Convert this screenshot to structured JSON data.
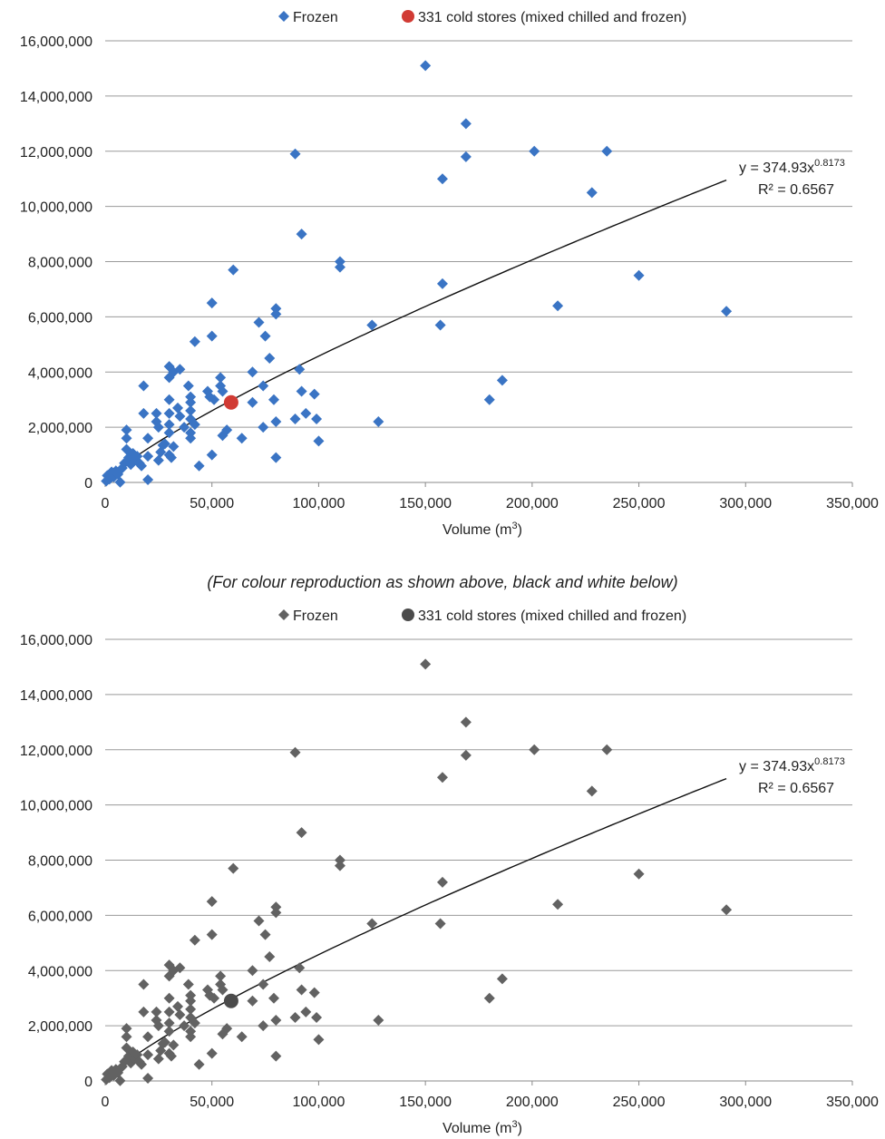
{
  "caption": "(For colour reproduction as shown above, black and white below)",
  "chart_data": [
    {
      "type": "scatter",
      "variant": "colour",
      "xlabel_main": "Volume (m",
      "xlabel_sup": "3",
      "xlabel_close": ")",
      "ylabel": "",
      "xlim": [
        0,
        350000
      ],
      "ylim": [
        0,
        16000000
      ],
      "xticks": [
        "0",
        "50,000",
        "100,000",
        "150,000",
        "200,000",
        "250,000",
        "300,000",
        "350,000"
      ],
      "yticks": [
        "0",
        "2,000,000",
        "4,000,000",
        "6,000,000",
        "8,000,000",
        "10,000,000",
        "12,000,000",
        "14,000,000",
        "16,000,000"
      ],
      "grid": "horizontal",
      "legend_position": "top",
      "trendline": {
        "type": "power",
        "a": 374.93,
        "b": 0.8173,
        "eq_main": "y = 374.93x",
        "eq_sup": "0.8173",
        "r2": "R² = 0.6567",
        "color": "#111111"
      },
      "series": [
        {
          "name": "Frozen",
          "marker": "diamond",
          "color": "#3a74c4",
          "points": []
        },
        {
          "name": "331 cold stores (mixed chilled and frozen)",
          "marker": "circle",
          "color": "#d13b34",
          "points": [
            [
              59000,
              2900000
            ]
          ]
        }
      ]
    },
    {
      "type": "scatter",
      "variant": "greyscale",
      "xlabel_main": "Volume (m",
      "xlabel_sup": "3",
      "xlabel_close": ")",
      "ylabel": "",
      "xlim": [
        0,
        350000
      ],
      "ylim": [
        0,
        16000000
      ],
      "xticks": [
        "0",
        "50,000",
        "100,000",
        "150,000",
        "200,000",
        "250,000",
        "300,000",
        "350,000"
      ],
      "yticks": [
        "0",
        "2,000,000",
        "4,000,000",
        "6,000,000",
        "8,000,000",
        "10,000,000",
        "12,000,000",
        "14,000,000",
        "16,000,000"
      ],
      "grid": "horizontal",
      "legend_position": "top",
      "trendline": {
        "type": "power",
        "a": 374.93,
        "b": 0.8173,
        "eq_main": "y = 374.93x",
        "eq_sup": "0.8173",
        "r2": "R² = 0.6567",
        "color": "#111111"
      },
      "series": [
        {
          "name": "Frozen",
          "marker": "diamond",
          "color": "#626262",
          "points": []
        },
        {
          "name": "331 cold stores (mixed chilled and frozen)",
          "marker": "circle",
          "color": "#4b4b4b",
          "points": [
            [
              59000,
              2900000
            ]
          ]
        }
      ]
    }
  ],
  "frozen_points": [
    [
      500,
      50000
    ],
    [
      1000,
      250000
    ],
    [
      2000,
      120000
    ],
    [
      3000,
      380000
    ],
    [
      4000,
      200000
    ],
    [
      5000,
      420000
    ],
    [
      6000,
      300000
    ],
    [
      7000,
      10000
    ],
    [
      8000,
      520000
    ],
    [
      9000,
      700000
    ],
    [
      10000,
      1200000
    ],
    [
      10000,
      1600000
    ],
    [
      10000,
      1900000
    ],
    [
      11000,
      900000
    ],
    [
      12000,
      650000
    ],
    [
      13000,
      1050000
    ],
    [
      14000,
      800000
    ],
    [
      15000,
      950000
    ],
    [
      16000,
      700000
    ],
    [
      17000,
      600000
    ],
    [
      18000,
      3500000
    ],
    [
      18000,
      2500000
    ],
    [
      20000,
      1600000
    ],
    [
      20000,
      950000
    ],
    [
      20000,
      100000
    ],
    [
      24000,
      2500000
    ],
    [
      24000,
      2200000
    ],
    [
      25000,
      2000000
    ],
    [
      25000,
      800000
    ],
    [
      26000,
      1100000
    ],
    [
      27000,
      1350000
    ],
    [
      28000,
      1400000
    ],
    [
      30000,
      4200000
    ],
    [
      30000,
      3800000
    ],
    [
      30000,
      3000000
    ],
    [
      30000,
      2500000
    ],
    [
      30000,
      2100000
    ],
    [
      30000,
      1800000
    ],
    [
      30000,
      1000000
    ],
    [
      31000,
      900000
    ],
    [
      32000,
      4000000
    ],
    [
      32000,
      1300000
    ],
    [
      34000,
      2700000
    ],
    [
      35000,
      4100000
    ],
    [
      35000,
      2400000
    ],
    [
      37000,
      2000000
    ],
    [
      39000,
      3500000
    ],
    [
      40000,
      3100000
    ],
    [
      40000,
      2900000
    ],
    [
      40000,
      2600000
    ],
    [
      40000,
      2300000
    ],
    [
      40000,
      1800000
    ],
    [
      40000,
      1600000
    ],
    [
      42000,
      5100000
    ],
    [
      42000,
      2100000
    ],
    [
      44000,
      600000
    ],
    [
      48000,
      3300000
    ],
    [
      49000,
      3100000
    ],
    [
      50000,
      6500000
    ],
    [
      50000,
      5300000
    ],
    [
      50000,
      1000000
    ],
    [
      51000,
      3000000
    ],
    [
      54000,
      3800000
    ],
    [
      54000,
      3500000
    ],
    [
      55000,
      3300000
    ],
    [
      55000,
      1700000
    ],
    [
      57000,
      1900000
    ],
    [
      60000,
      7700000
    ],
    [
      64000,
      1600000
    ],
    [
      69000,
      4000000
    ],
    [
      69000,
      2900000
    ],
    [
      72000,
      5800000
    ],
    [
      74000,
      3500000
    ],
    [
      74000,
      2000000
    ],
    [
      75000,
      5300000
    ],
    [
      77000,
      4500000
    ],
    [
      79000,
      3000000
    ],
    [
      80000,
      6300000
    ],
    [
      80000,
      6100000
    ],
    [
      80000,
      2200000
    ],
    [
      80000,
      900000
    ],
    [
      89000,
      11900000
    ],
    [
      89000,
      2300000
    ],
    [
      91000,
      4100000
    ],
    [
      92000,
      9000000
    ],
    [
      92000,
      3300000
    ],
    [
      94000,
      2500000
    ],
    [
      98000,
      3200000
    ],
    [
      99000,
      2300000
    ],
    [
      100000,
      1500000
    ],
    [
      110000,
      8000000
    ],
    [
      110000,
      7800000
    ],
    [
      125000,
      5700000
    ],
    [
      128000,
      2200000
    ],
    [
      150000,
      15100000
    ],
    [
      157000,
      5700000
    ],
    [
      158000,
      11000000
    ],
    [
      158000,
      7200000
    ],
    [
      169000,
      13000000
    ],
    [
      169000,
      11800000
    ],
    [
      180000,
      3000000
    ],
    [
      186000,
      3700000
    ],
    [
      201000,
      12000000
    ],
    [
      212000,
      6400000
    ],
    [
      228000,
      10500000
    ],
    [
      235000,
      12000000
    ],
    [
      250000,
      7500000
    ],
    [
      291000,
      6200000
    ]
  ]
}
